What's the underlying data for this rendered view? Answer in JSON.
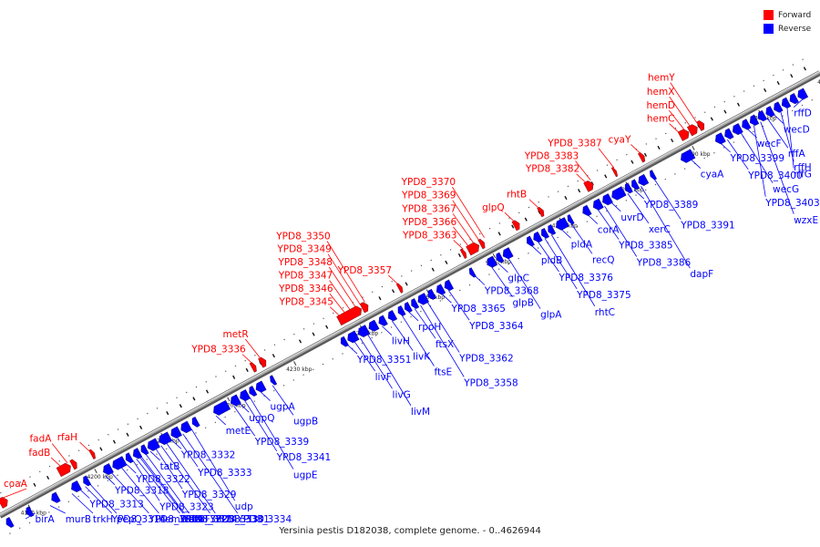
{
  "caption": "Yersinia pestis D182038, complete genome. - 0..4626944",
  "legend": [
    {
      "label": "Forward",
      "color": "#ff0000"
    },
    {
      "label": "Reverse",
      "color": "#0000ff"
    }
  ],
  "colors": {
    "forward": "#ff0000",
    "reverse": "#0000ff",
    "backbone": "#999999",
    "text": "#222222"
  },
  "scale": {
    "start": 4190,
    "end": 4310,
    "step": 10,
    "unit": "kbp",
    "tick_labels": [
      "4190 kbp",
      "4200 kbp",
      "4210 kbp",
      "4220 kbp",
      "4230 kbp",
      "4240 kbp",
      "4250 kbp",
      "4260 kbp",
      "4270 kbp",
      "4280 kbp",
      "4290 kbp",
      "4300 kbp",
      "4310 kbp"
    ]
  },
  "forward_labels": [
    {
      "name": "coaA",
      "pos": 4187.5
    },
    {
      "name": "fadB",
      "pos": 4196.2
    },
    {
      "name": "fadA",
      "pos": 4197.2
    },
    {
      "name": "rfaH",
      "pos": 4200.5
    },
    {
      "name": "YPD8_3336",
      "pos": 4225.0
    },
    {
      "name": "metR",
      "pos": 4226.3
    },
    {
      "name": "YPD8_3345",
      "pos": 4238.2
    },
    {
      "name": "YPD8_3346",
      "pos": 4239.0
    },
    {
      "name": "YPD8_3347",
      "pos": 4239.8
    },
    {
      "name": "YPD8_3348",
      "pos": 4240.6
    },
    {
      "name": "YPD8_3349",
      "pos": 4241.3
    },
    {
      "name": "YPD8_3350",
      "pos": 4242.0
    },
    {
      "name": "YPD8_3357",
      "pos": 4247.0
    },
    {
      "name": "YPD8_3363",
      "pos": 4256.8
    },
    {
      "name": "YPD8_3366",
      "pos": 4257.6
    },
    {
      "name": "YPD8_3367",
      "pos": 4258.4
    },
    {
      "name": "YPD8_3369",
      "pos": 4259.2
    },
    {
      "name": "YPD8_3370",
      "pos": 4260.0
    },
    {
      "name": "glpQ",
      "pos": 4264.5
    },
    {
      "name": "rhtB",
      "pos": 4268.2
    },
    {
      "name": "YPD8_3382",
      "pos": 4275.3
    },
    {
      "name": "YPD8_3383",
      "pos": 4276.0
    },
    {
      "name": "YPD8_3387",
      "pos": 4279.5
    },
    {
      "name": "cyaY",
      "pos": 4283.5
    },
    {
      "name": "hemC",
      "pos": 4289.3
    },
    {
      "name": "hemD",
      "pos": 4290.1
    },
    {
      "name": "hemX",
      "pos": 4291.0
    },
    {
      "name": "hemY",
      "pos": 4292.0
    }
  ],
  "reverse_labels": [
    {
      "name": "birA",
      "pos": 4188.8
    },
    {
      "name": "YPD8_3323",
      "pos": 4205.0
    },
    {
      "name": "YPD8_3324",
      "pos": 4206.0
    },
    {
      "name": "rffD",
      "pos": 4306.0
    },
    {
      "name": "murB",
      "pos": 4192.5
    },
    {
      "name": "trkH",
      "pos": 4195.8
    },
    {
      "name": "YPD8_3313",
      "pos": 4197.0
    },
    {
      "name": "YPD8_3314",
      "pos": 4197.8
    },
    {
      "name": "pepQ",
      "pos": 4198.5
    },
    {
      "name": "YPD8_3318",
      "pos": 4200.8
    },
    {
      "name": "YPD8_3319",
      "pos": 4201.7
    },
    {
      "name": "hemB",
      "pos": 4203.2
    },
    {
      "name": "YPD8_3322",
      "pos": 4204.0
    },
    {
      "name": "YPD8_3325",
      "pos": 4205.5
    },
    {
      "name": "tatC",
      "pos": 4206.2
    },
    {
      "name": "aarF",
      "pos": 4206.9
    },
    {
      "name": "tatB",
      "pos": 4207.6
    },
    {
      "name": "YPD8_3329",
      "pos": 4208.4
    },
    {
      "name": "YPD8_3330",
      "pos": 4209.2
    },
    {
      "name": "YPD8_3331",
      "pos": 4210.0
    },
    {
      "name": "YPD8_3332",
      "pos": 4210.8
    },
    {
      "name": "YPD8_3333",
      "pos": 4211.6
    },
    {
      "name": "YPD8_3334",
      "pos": 4212.5
    },
    {
      "name": "udp",
      "pos": 4213.8
    },
    {
      "name": "metE",
      "pos": 4217.5
    },
    {
      "name": "YPD8_3339",
      "pos": 4220.2
    },
    {
      "name": "ugpQ",
      "pos": 4221.0
    },
    {
      "name": "YPD8_3341",
      "pos": 4221.8
    },
    {
      "name": "ugpE",
      "pos": 4222.6
    },
    {
      "name": "ugpA",
      "pos": 4224.2
    },
    {
      "name": "ugpB",
      "pos": 4226.0
    },
    {
      "name": "YPD8_3351",
      "pos": 4237.3
    },
    {
      "name": "livF",
      "pos": 4238.3
    },
    {
      "name": "livG",
      "pos": 4239.2
    },
    {
      "name": "livM",
      "pos": 4240.3
    },
    {
      "name": "livH",
      "pos": 4242.5
    },
    {
      "name": "livK",
      "pos": 4244.0
    },
    {
      "name": "ftsE",
      "pos": 4245.5
    },
    {
      "name": "rpoH",
      "pos": 4246.5
    },
    {
      "name": "ftsX",
      "pos": 4247.4
    },
    {
      "name": "YPD8_3358",
      "pos": 4248.3
    },
    {
      "name": "YPD8_3362",
      "pos": 4249.3
    },
    {
      "name": "YPD8_3365",
      "pos": 4251.5
    },
    {
      "name": "YPD8_3364",
      "pos": 4252.5
    },
    {
      "name": "YPD8_3368",
      "pos": 4256.5
    },
    {
      "name": "glpB",
      "pos": 4259.0
    },
    {
      "name": "glpC",
      "pos": 4260.0
    },
    {
      "name": "glpA",
      "pos": 4261.5
    },
    {
      "name": "pldB",
      "pos": 4265.0
    },
    {
      "name": "YPD8_3376",
      "pos": 4266.0
    },
    {
      "name": "YPD8_3375",
      "pos": 4267.0
    },
    {
      "name": "rhtC",
      "pos": 4268.0
    },
    {
      "name": "pldA",
      "pos": 4269.5
    },
    {
      "name": "recQ",
      "pos": 4271.0
    },
    {
      "name": "corA",
      "pos": 4273.5
    },
    {
      "name": "YPD8_3385",
      "pos": 4275.0
    },
    {
      "name": "YPD8_3386",
      "pos": 4276.0
    },
    {
      "name": "uvrD",
      "pos": 4277.0
    },
    {
      "name": "xerC",
      "pos": 4279.5
    },
    {
      "name": "YPD8_3389",
      "pos": 4280.5
    },
    {
      "name": "dapF",
      "pos": 4281.5
    },
    {
      "name": "YPD8_3391",
      "pos": 4283.5
    },
    {
      "name": "cyaA",
      "pos": 4289.0
    },
    {
      "name": "YPD8_3399",
      "pos": 4293.5
    },
    {
      "name": "YPD8_3400",
      "pos": 4294.5
    },
    {
      "name": "wecG",
      "pos": 4296.5
    },
    {
      "name": "wecF",
      "pos": 4297.5
    },
    {
      "name": "YPD8_3403",
      "pos": 4298.5
    },
    {
      "name": "wzxE",
      "pos": 4299.5
    },
    {
      "name": "rffA",
      "pos": 4300.5
    },
    {
      "name": "wecD",
      "pos": 4301.5
    },
    {
      "name": "rffH",
      "pos": 4302.5
    },
    {
      "name": "rffG",
      "pos": 4303.5
    }
  ],
  "forward_genes": [
    {
      "start": 4186.8,
      "end": 4187.9
    },
    {
      "start": 4195.6,
      "end": 4197.4
    },
    {
      "start": 4197.6,
      "end": 4198.3
    },
    {
      "start": 4200.5,
      "end": 4201.0
    },
    {
      "start": 4224.7,
      "end": 4225.3
    },
    {
      "start": 4226.0,
      "end": 4226.8
    },
    {
      "start": 4237.8,
      "end": 4241.2
    },
    {
      "start": 4241.3,
      "end": 4242.2
    },
    {
      "start": 4246.8,
      "end": 4247.3
    },
    {
      "start": 4256.4,
      "end": 4256.9
    },
    {
      "start": 4257.3,
      "end": 4258.9
    },
    {
      "start": 4259.1,
      "end": 4259.7
    },
    {
      "start": 4264.2,
      "end": 4265.0
    },
    {
      "start": 4268.0,
      "end": 4268.6
    },
    {
      "start": 4275.0,
      "end": 4276.1
    },
    {
      "start": 4279.2,
      "end": 4279.6
    },
    {
      "start": 4283.2,
      "end": 4283.8
    },
    {
      "start": 4289.2,
      "end": 4290.5
    },
    {
      "start": 4290.6,
      "end": 4291.8
    },
    {
      "start": 4292.0,
      "end": 4292.8
    }
  ],
  "reverse_genes": [
    {
      "start": 4186.2,
      "end": 4187.0
    },
    {
      "start": 4189.2,
      "end": 4190.0
    },
    {
      "start": 4193.0,
      "end": 4194.0
    },
    {
      "start": 4196.0,
      "end": 4197.2
    },
    {
      "start": 4197.8,
      "end": 4198.6
    },
    {
      "start": 4200.8,
      "end": 4202.0
    },
    {
      "start": 4202.2,
      "end": 4204.0
    },
    {
      "start": 4204.2,
      "end": 4205.0
    },
    {
      "start": 4205.3,
      "end": 4206.3
    },
    {
      "start": 4206.5,
      "end": 4207.3
    },
    {
      "start": 4207.5,
      "end": 4209.0
    },
    {
      "start": 4209.2,
      "end": 4210.8
    },
    {
      "start": 4211.0,
      "end": 4212.3
    },
    {
      "start": 4212.5,
      "end": 4213.8
    },
    {
      "start": 4214.2,
      "end": 4215.0
    },
    {
      "start": 4217.4,
      "end": 4219.6
    },
    {
      "start": 4220.0,
      "end": 4221.2
    },
    {
      "start": 4221.4,
      "end": 4222.6
    },
    {
      "start": 4222.8,
      "end": 4223.6
    },
    {
      "start": 4223.8,
      "end": 4225.0
    },
    {
      "start": 4226.0,
      "end": 4226.6
    },
    {
      "start": 4236.6,
      "end": 4237.4
    },
    {
      "start": 4237.6,
      "end": 4239.0
    },
    {
      "start": 4239.2,
      "end": 4240.6
    },
    {
      "start": 4240.8,
      "end": 4242.0
    },
    {
      "start": 4242.3,
      "end": 4243.3
    },
    {
      "start": 4243.7,
      "end": 4244.7
    },
    {
      "start": 4245.2,
      "end": 4246.0
    },
    {
      "start": 4246.2,
      "end": 4247.0
    },
    {
      "start": 4247.2,
      "end": 4248.0
    },
    {
      "start": 4248.2,
      "end": 4249.5
    },
    {
      "start": 4249.7,
      "end": 4250.6
    },
    {
      "start": 4251.0,
      "end": 4252.0
    },
    {
      "start": 4252.2,
      "end": 4253.2
    },
    {
      "start": 4256.0,
      "end": 4256.6
    },
    {
      "start": 4258.6,
      "end": 4259.8
    },
    {
      "start": 4260.0,
      "end": 4260.8
    },
    {
      "start": 4261.0,
      "end": 4262.2
    },
    {
      "start": 4264.6,
      "end": 4265.4
    },
    {
      "start": 4265.6,
      "end": 4266.6
    },
    {
      "start": 4266.8,
      "end": 4267.6
    },
    {
      "start": 4267.8,
      "end": 4268.6
    },
    {
      "start": 4269.0,
      "end": 4270.6
    },
    {
      "start": 4270.8,
      "end": 4271.4
    },
    {
      "start": 4273.0,
      "end": 4274.0
    },
    {
      "start": 4274.6,
      "end": 4275.8
    },
    {
      "start": 4276.0,
      "end": 4277.2
    },
    {
      "start": 4277.4,
      "end": 4279.2
    },
    {
      "start": 4279.4,
      "end": 4280.2
    },
    {
      "start": 4280.4,
      "end": 4281.2
    },
    {
      "start": 4281.4,
      "end": 4282.6
    },
    {
      "start": 4283.2,
      "end": 4283.8
    },
    {
      "start": 4287.8,
      "end": 4289.6
    },
    {
      "start": 4293.0,
      "end": 4294.2
    },
    {
      "start": 4294.4,
      "end": 4295.4
    },
    {
      "start": 4295.6,
      "end": 4296.8
    },
    {
      "start": 4297.0,
      "end": 4298.0
    },
    {
      "start": 4298.2,
      "end": 4299.2
    },
    {
      "start": 4299.4,
      "end": 4300.4
    },
    {
      "start": 4300.6,
      "end": 4301.6
    },
    {
      "start": 4301.8,
      "end": 4302.8
    },
    {
      "start": 4303.0,
      "end": 4304.0
    },
    {
      "start": 4304.2,
      "end": 4305.2
    },
    {
      "start": 4305.4,
      "end": 4306.6
    }
  ]
}
